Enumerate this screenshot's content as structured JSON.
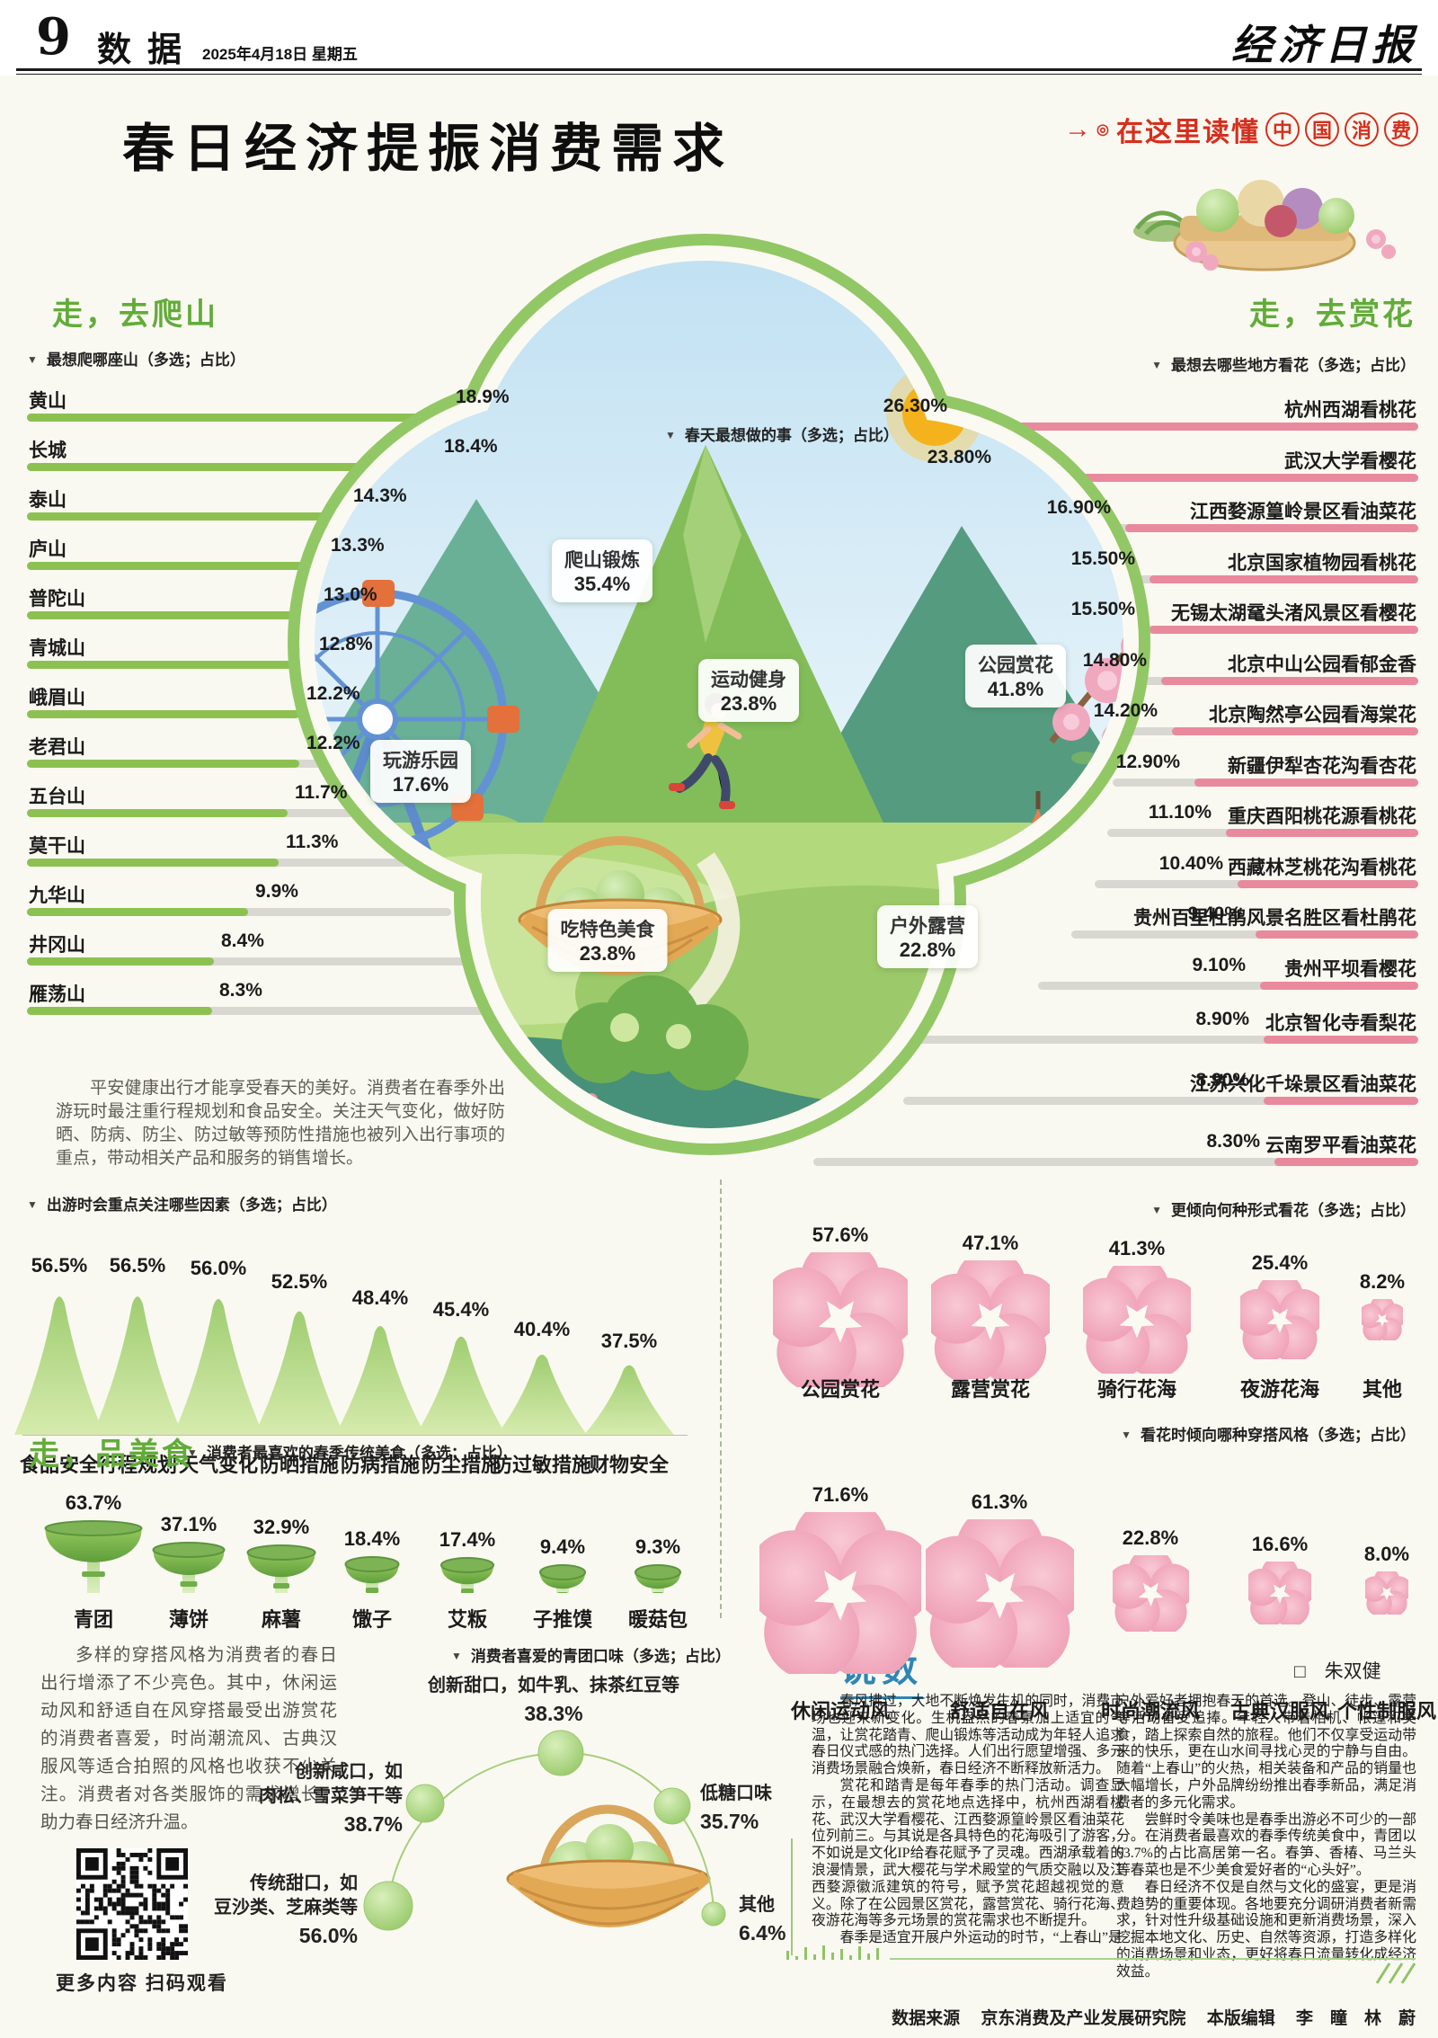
{
  "page": {
    "number": "9",
    "section": "数据",
    "date": "2025年4月18日 星期五",
    "masthead": "经济日报"
  },
  "badge": {
    "prefix": "在这里读懂",
    "circles": [
      "中",
      "国",
      "消",
      "费"
    ]
  },
  "title": "春日经济提振消费需求",
  "climb": {
    "heading": "走，去爬山",
    "subtitle": "最想爬哪座山（多选；占比）",
    "items": [
      {
        "name": "黄山",
        "pct": "18.9%",
        "value": 18.9
      },
      {
        "name": "长城",
        "pct": "18.4%",
        "value": 18.4
      },
      {
        "name": "泰山",
        "pct": "14.3%",
        "value": 14.3
      },
      {
        "name": "庐山",
        "pct": "13.3%",
        "value": 13.3
      },
      {
        "name": "普陀山",
        "pct": "13.0%",
        "value": 13.0
      },
      {
        "name": "青城山",
        "pct": "12.8%",
        "value": 12.8
      },
      {
        "name": "峨眉山",
        "pct": "12.2%",
        "value": 12.2
      },
      {
        "name": "老君山",
        "pct": "12.2%",
        "value": 12.2
      },
      {
        "name": "五台山",
        "pct": "11.7%",
        "value": 11.7
      },
      {
        "name": "莫干山",
        "pct": "11.3%",
        "value": 11.3
      },
      {
        "name": "九华山",
        "pct": "9.9%",
        "value": 9.9
      },
      {
        "name": "井冈山",
        "pct": "8.4%",
        "value": 8.4
      },
      {
        "name": "雁荡山",
        "pct": "8.3%",
        "value": 8.3
      }
    ]
  },
  "spring_activities": {
    "header": "春天最想做的事（多选；占比）",
    "chips": [
      {
        "label": "爬山锻炼",
        "pct": "35.4%"
      },
      {
        "label": "运动健身",
        "pct": "23.8%"
      },
      {
        "label": "公园赏花",
        "pct": "41.8%"
      },
      {
        "label": "玩游乐园",
        "pct": "17.6%"
      },
      {
        "label": "吃特色美食",
        "pct": "23.8%"
      },
      {
        "label": "户外露营",
        "pct": "22.8%"
      }
    ]
  },
  "flower_places": {
    "heading": "走，去赏花",
    "subtitle": "最想去哪些地方看花（多选；占比）",
    "items": [
      {
        "name": "杭州西湖看桃花",
        "pct": "26.30%",
        "value": 26.3
      },
      {
        "name": "武汉大学看樱花",
        "pct": "23.80%",
        "value": 23.8
      },
      {
        "name": "江西婺源篁岭景区看油菜花",
        "pct": "16.90%",
        "value": 16.9
      },
      {
        "name": "北京国家植物园看桃花",
        "pct": "15.50%",
        "value": 15.5
      },
      {
        "name": "无锡太湖鼋头渚风景区看樱花",
        "pct": "15.50%",
        "value": 15.5
      },
      {
        "name": "北京中山公园看郁金香",
        "pct": "14.80%",
        "value": 14.8
      },
      {
        "name": "北京陶然亭公园看海棠花",
        "pct": "14.20%",
        "value": 14.2
      },
      {
        "name": "新疆伊犁杏花沟看杏花",
        "pct": "12.90%",
        "value": 12.9
      },
      {
        "name": "重庆酉阳桃花源看桃花",
        "pct": "11.10%",
        "value": 11.1
      },
      {
        "name": "西藏林芝桃花沟看桃花",
        "pct": "10.40%",
        "value": 10.4
      },
      {
        "name": "贵州百里杜鹃风景名胜区看杜鹃花",
        "pct": "9.40%",
        "value": 9.4
      },
      {
        "name": "贵州平坝看樱花",
        "pct": "9.10%",
        "value": 9.1
      },
      {
        "name": "北京智化寺看梨花",
        "pct": "8.90%",
        "value": 8.9
      },
      {
        "name": "江苏兴化千垛景区看油菜花",
        "pct": "8.90%",
        "value": 8.9
      },
      {
        "name": "云南罗平看油菜花",
        "pct": "8.30%",
        "value": 8.3
      }
    ]
  },
  "safety_note": "平安健康出行才能享受春天的美好。消费者在春季外出游玩时最注重行程规划和食品安全。关注天气变化，做好防晒、防病、防尘、防过敏等预防性措施也被列入出行事项的重点，带动相关产品和服务的销售增长。",
  "factors": {
    "header": "出游时会重点关注哪些因素（多选；占比）",
    "items": [
      {
        "label": "食品安全",
        "pct": "56.5%",
        "value": 56.5
      },
      {
        "label": "行程规划",
        "pct": "56.5%",
        "value": 56.5
      },
      {
        "label": "天气变化",
        "pct": "56.0%",
        "value": 56.0
      },
      {
        "label": "防晒措施",
        "pct": "52.5%",
        "value": 52.5
      },
      {
        "label": "防病措施",
        "pct": "48.4%",
        "value": 48.4
      },
      {
        "label": "防尘措施",
        "pct": "45.4%",
        "value": 45.4
      },
      {
        "label": "防过敏措施",
        "pct": "40.4%",
        "value": 40.4
      },
      {
        "label": "财物安全",
        "pct": "37.5%",
        "value": 37.5
      }
    ]
  },
  "food": {
    "heading": "走，品美食",
    "subtitle": "消费者最喜欢的春季传统美食（多选；占比）",
    "items": [
      {
        "label": "青团",
        "pct": "63.7%",
        "value": 63.7
      },
      {
        "label": "薄饼",
        "pct": "37.1%",
        "value": 37.1
      },
      {
        "label": "麻薯",
        "pct": "32.9%",
        "value": 32.9
      },
      {
        "label": "馓子",
        "pct": "18.4%",
        "value": 18.4
      },
      {
        "label": "艾粄",
        "pct": "17.4%",
        "value": 17.4
      },
      {
        "label": "子推馍",
        "pct": "9.4%",
        "value": 9.4
      },
      {
        "label": "暖菇包",
        "pct": "9.3%",
        "value": 9.3
      }
    ]
  },
  "flower_forms": {
    "header": "更倾向何种形式看花（多选；占比）",
    "items": [
      {
        "label": "公园赏花",
        "pct": "57.6%",
        "value": 57.6
      },
      {
        "label": "露营赏花",
        "pct": "47.1%",
        "value": 47.1
      },
      {
        "label": "骑行花海",
        "pct": "41.3%",
        "value": 41.3
      },
      {
        "label": "夜游花海",
        "pct": "25.4%",
        "value": 25.4
      },
      {
        "label": "其他",
        "pct": "8.2%",
        "value": 8.2
      }
    ]
  },
  "outfit_styles": {
    "header": "看花时倾向哪种穿搭风格（多选；占比）",
    "items": [
      {
        "label": "休闲运动风",
        "pct": "71.6%",
        "value": 71.6
      },
      {
        "label": "舒适自在风",
        "pct": "61.3%",
        "value": 61.3
      },
      {
        "label": "时尚潮流风",
        "pct": "22.8%",
        "value": 22.8
      },
      {
        "label": "古典汉服风",
        "pct": "16.6%",
        "value": 16.6
      },
      {
        "label": "个性制服风",
        "pct": "8.0%",
        "value": 8.0
      }
    ]
  },
  "outfit_note": "多样的穿搭风格为消费者的春日出行增添了不少亮色。其中，休闲运动风和舒适自在风穿搭最受出游赏花的消费者喜爱，时尚潮流风、古典汉服风等适合拍照的风格也收获不少关注。消费者对各类服饰的需求增长，助力春日经济升温。",
  "qingtuan": {
    "header": "消费者喜爱的青团口味（多选；占比）",
    "items": [
      {
        "label": "创新甜口，如牛乳、抹茶红豆等",
        "pct": "38.3%",
        "value": 38.3
      },
      {
        "label": "创新咸口，如\n肉松、雪菜笋干等",
        "pct": "38.7%",
        "value": 38.7
      },
      {
        "label": "传统甜口，如\n豆沙类、芝麻类等",
        "pct": "56.0%",
        "value": 56.0
      },
      {
        "label": "低糖口味",
        "pct": "35.7%",
        "value": 35.7
      },
      {
        "label": "其他",
        "pct": "6.4%",
        "value": 6.4
      }
    ]
  },
  "qr_caption": "更多内容 扫码观看",
  "shuoshu": {
    "title": "说数",
    "author": "□　朱双健",
    "col1": [
      "春风拂过，大地不断焕发生机的同时，消费市场也迎来新变化。生机盎然的春景加上适宜的气温，让赏花踏青、爬山锻炼等活动成为年轻人追求春日仪式感的热门选择。人们出行愿望增强、多元消费场景融合焕新，春日经济不断释放新活力。",
      "赏花和踏青是每年春季的热门活动。调查显示，在最想去的赏花地点选择中，杭州西湖看桃花、武汉大学看樱花、江西婺源篁岭景区看油菜花位列前三。与其说是各具特色的花海吸引了游客，不如说是文化IP给春花赋予了灵魂。西湖承载着的浪漫情景，武大樱花与学术殿堂的气质交融以及江西婺源徽派建筑的符号，赋予赏花超越视觉的意义。除了在公园景区赏花，露营赏花、骑行花海、夜游花海等多元场景的赏花需求也不断提升。",
      "春季是适宜开展户外运动的时节，“上春山”是"
    ],
    "col2": [
      "户外爱好者拥抱春天的首选。登山、徒步、露营等活动备受追捧。年轻人带着相机、帐篷和美食，踏上探索自然的旅程。他们不仅享受运动带来的快乐，更在山水间寻找心灵的宁静与自由。随着“上春山”的火热，相关装备和产品的销量也大幅增长，户外品牌纷纷推出春季新品，满足消费者的多元化需求。",
      "尝鲜时令美味也是春季出游必不可少的一部分。在消费者最喜欢的春季传统美食中，青团以63.7%的占比高居第一名。春笋、香椿、马兰头等春菜也是不少美食爱好者的“心头好”。",
      "春日经济不仅是自然与文化的盛宴，更是消费趋势的重要体现。各地要充分调研消费者新需求，针对性升级基础设施和更新消费场景，深入挖掘本地文化、历史、自然等资源，打造多样化的消费场景和业态，更好将春日流量转化成经济效益。"
    ]
  },
  "credits": {
    "source_label": "数据来源",
    "source": "京东消费及产业发展研究院",
    "editor_label": "本版编辑",
    "editors": "李　瞳　林　蔚"
  },
  "chart_data": [
    {
      "id": "climb_mountains",
      "type": "bar",
      "title": "最想爬哪座山（多选；占比）",
      "categories": [
        "黄山",
        "长城",
        "泰山",
        "庐山",
        "普陀山",
        "青城山",
        "峨眉山",
        "老君山",
        "五台山",
        "莫干山",
        "九华山",
        "井冈山",
        "雁荡山"
      ],
      "values": [
        18.9,
        18.4,
        14.3,
        13.3,
        13.0,
        12.8,
        12.2,
        12.2,
        11.7,
        11.3,
        9.9,
        8.4,
        8.3
      ],
      "unit": "%",
      "orientation": "horizontal"
    },
    {
      "id": "spring_wishes",
      "type": "pictogram",
      "title": "春天最想做的事（多选；占比）",
      "categories": [
        "爬山锻炼",
        "运动健身",
        "公园赏花",
        "玩游乐园",
        "吃特色美食",
        "户外露营"
      ],
      "values": [
        35.4,
        23.8,
        41.8,
        17.6,
        23.8,
        22.8
      ],
      "unit": "%"
    },
    {
      "id": "flower_places",
      "type": "bar",
      "title": "最想去哪些地方看花（多选；占比）",
      "categories": [
        "杭州西湖看桃花",
        "武汉大学看樱花",
        "江西婺源篁岭景区看油菜花",
        "北京国家植物园看桃花",
        "无锡太湖鼋头渚风景区看樱花",
        "北京中山公园看郁金香",
        "北京陶然亭公园看海棠花",
        "新疆伊犁杏花沟看杏花",
        "重庆酉阳桃花源看桃花",
        "西藏林芝桃花沟看桃花",
        "贵州百里杜鹃风景名胜区看杜鹃花",
        "贵州平坝看樱花",
        "北京智化寺看梨花",
        "江苏兴化千垛景区看油菜花",
        "云南罗平看油菜花"
      ],
      "values": [
        26.3,
        23.8,
        16.9,
        15.5,
        15.5,
        14.8,
        14.2,
        12.9,
        11.1,
        10.4,
        9.4,
        9.1,
        8.9,
        8.9,
        8.3
      ],
      "unit": "%",
      "orientation": "horizontal-right"
    },
    {
      "id": "travel_factors",
      "type": "pictogram",
      "title": "出游时会重点关注哪些因素（多选；占比）",
      "categories": [
        "食品安全",
        "行程规划",
        "天气变化",
        "防晒措施",
        "防病措施",
        "防尘措施",
        "防过敏措施",
        "财物安全"
      ],
      "values": [
        56.5,
        56.5,
        56.0,
        52.5,
        48.4,
        45.4,
        40.4,
        37.5
      ],
      "unit": "%",
      "glyph": "mountain"
    },
    {
      "id": "spring_foods",
      "type": "pictogram",
      "title": "消费者最喜欢的春季传统美食（多选；占比）",
      "categories": [
        "青团",
        "薄饼",
        "麻薯",
        "馓子",
        "艾粄",
        "子推馍",
        "暖菇包"
      ],
      "values": [
        63.7,
        37.1,
        32.9,
        18.4,
        17.4,
        9.4,
        9.3
      ],
      "unit": "%",
      "glyph": "bowl"
    },
    {
      "id": "flower_forms",
      "type": "pictogram",
      "title": "更倾向何种形式看花（多选；占比）",
      "categories": [
        "公园赏花",
        "露营赏花",
        "骑行花海",
        "夜游花海",
        "其他"
      ],
      "values": [
        57.6,
        47.1,
        41.3,
        25.4,
        8.2
      ],
      "unit": "%",
      "glyph": "blossom"
    },
    {
      "id": "outfit_styles",
      "type": "pictogram",
      "title": "看花时倾向哪种穿搭风格（多选；占比）",
      "categories": [
        "休闲运动风",
        "舒适自在风",
        "时尚潮流风",
        "古典汉服风",
        "个性制服风"
      ],
      "values": [
        71.6,
        61.3,
        22.8,
        16.6,
        8.0
      ],
      "unit": "%",
      "glyph": "blossom"
    },
    {
      "id": "qingtuan_flavors",
      "type": "pictogram",
      "title": "消费者喜爱的青团口味（多选；占比）",
      "categories": [
        "创新甜口，如牛乳、抹茶红豆等",
        "创新咸口，如肉松、雪菜笋干等",
        "传统甜口，如豆沙类、芝麻类等",
        "低糖口味",
        "其他"
      ],
      "values": [
        38.3,
        38.7,
        56.0,
        35.7,
        6.4
      ],
      "unit": "%",
      "glyph": "circle"
    }
  ]
}
